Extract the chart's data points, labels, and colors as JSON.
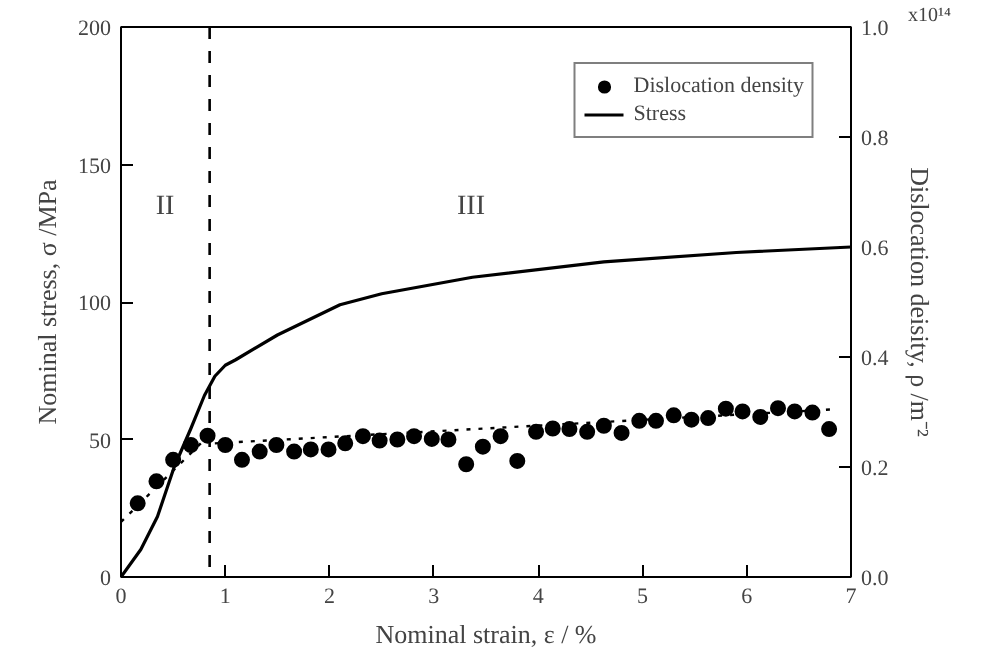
{
  "chart_data": {
    "type": "line",
    "xlabel": "Nominal strain, ε / %",
    "ylabel": "Nominal stress, σ /MPa",
    "y2label": "Dislocation deisity, ρ /m⁻²",
    "xlim": [
      0,
      7
    ],
    "xticks": [
      0,
      1,
      2,
      3,
      4,
      5,
      6,
      7
    ],
    "ylim": [
      0,
      200
    ],
    "yticks": [
      0,
      50,
      100,
      150,
      200
    ],
    "y2lim": [
      0,
      1
    ],
    "y2ticks": [
      {
        "value": 0,
        "label": "0.0"
      },
      0.2,
      0.4,
      0.6,
      0.8,
      {
        "value": 1,
        "label": "1.0"
      }
    ],
    "legend": "top right",
    "series": [
      {
        "name": "Dislocation density",
        "type": "scatter",
        "axis": "y2",
        "marker": "circle",
        "color": "#000000",
        "x": [
          0.16,
          0.34,
          0.5,
          0.67,
          0.83,
          1.0,
          1.16,
          1.33,
          1.49,
          1.66,
          1.82,
          1.99,
          2.15,
          2.32,
          2.48,
          2.65,
          2.81,
          2.98,
          3.14,
          3.31,
          3.47,
          3.64,
          3.8,
          3.98,
          4.14,
          4.3,
          4.47,
          4.63,
          4.8,
          4.97,
          5.13,
          5.3,
          5.47,
          5.63,
          5.8,
          5.96,
          6.13,
          6.3,
          6.46,
          6.63,
          6.79
        ],
        "values": [
          0.134,
          0.174,
          0.213,
          0.24,
          0.257,
          0.24,
          0.213,
          0.228,
          0.24,
          0.228,
          0.232,
          0.232,
          0.243,
          0.256,
          0.248,
          0.25,
          0.256,
          0.251,
          0.25,
          0.205,
          0.237,
          0.256,
          0.211,
          0.264,
          0.27,
          0.269,
          0.264,
          0.275,
          0.262,
          0.284,
          0.284,
          0.294,
          0.286,
          0.289,
          0.306,
          0.301,
          0.291,
          0.307,
          0.301,
          0.299,
          0.269
        ]
      },
      {
        "name": "Stress",
        "axis": "y",
        "line_style": "solid",
        "color": "#000000",
        "x": [
          0,
          0.19,
          0.35,
          0.51,
          0.67,
          0.8,
          0.9,
          1.0,
          1.1,
          1.5,
          2.1,
          2.5,
          3.37,
          4.63,
          5.9,
          7
        ],
        "values": [
          0,
          10,
          22,
          40,
          54,
          66,
          73,
          77,
          79,
          88,
          99,
          103,
          109,
          114.6,
          118,
          120
        ]
      },
      {
        "axis": "y2",
        "line_style": "dotted",
        "color": "#000000",
        "x": [
          0,
          0.83
        ],
        "values": [
          0.1,
          0.255
        ]
      },
      {
        "axis": "y2",
        "line_style": "dotted",
        "color": "#000000",
        "x": [
          0.9,
          6.85
        ],
        "values": [
          0.243,
          0.305
        ]
      }
    ],
    "ref_lines": [
      {
        "axis": "x",
        "value": 0.85,
        "line_style": "dashed",
        "color": "#000000"
      }
    ],
    "annotations": [
      "II",
      "III",
      "x10¹⁴"
    ]
  }
}
